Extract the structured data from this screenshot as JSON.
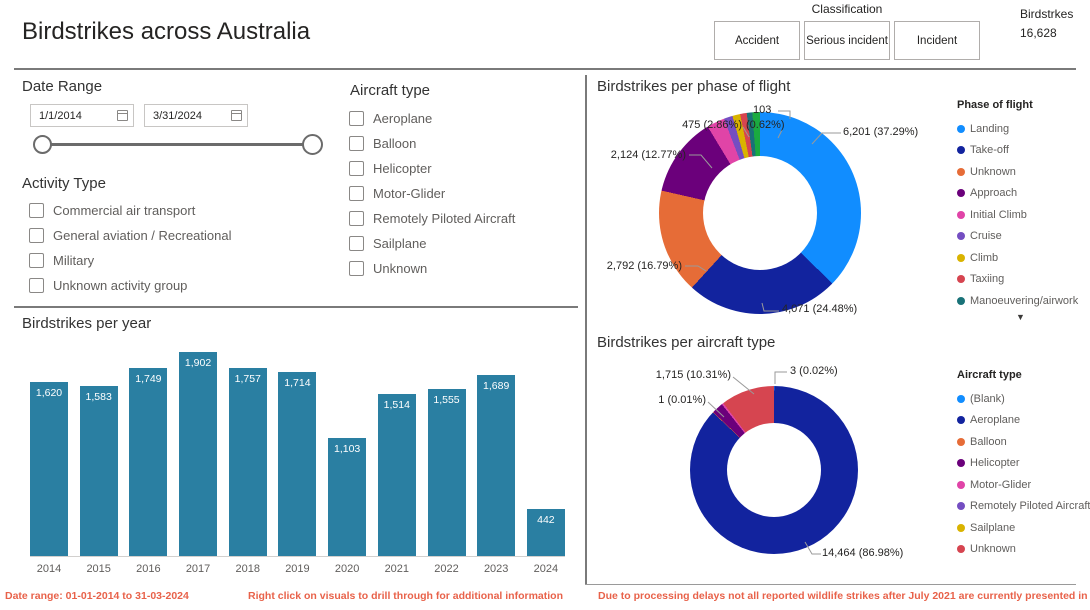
{
  "header": {
    "title": "Birdstrikes across Australia",
    "classification": {
      "label": "Classification",
      "buttons": [
        "Accident",
        "Serious incident",
        "Incident"
      ]
    },
    "kpi": {
      "label": "Birdstrkes",
      "value": "16,628"
    }
  },
  "filters": {
    "date_range": {
      "label": "Date Range",
      "start": "1/1/2014",
      "end": "3/31/2024"
    },
    "activity_type": {
      "label": "Activity Type",
      "options": [
        "Commercial air transport",
        "General aviation / Recreational",
        "Military",
        "Unknown activity group"
      ]
    },
    "aircraft_type": {
      "label": "Aircraft type",
      "options": [
        "Aeroplane",
        "Balloon",
        "Helicopter",
        "Motor-Glider",
        "Remotely Piloted Aircraft",
        "Sailplane",
        "Unknown"
      ]
    }
  },
  "footer": {
    "left": "Date range: 01-01-2014 to 31-03-2024",
    "middle": "Right click on visuals to drill through for additional information",
    "right": "Due to processing delays not all reported wildlife strikes after July 2021 are currently presented in this datas"
  },
  "chart_data": [
    {
      "id": "per_year",
      "type": "bar",
      "title": "Birdstrikes per year",
      "categories": [
        "2014",
        "2015",
        "2016",
        "2017",
        "2018",
        "2019",
        "2020",
        "2021",
        "2022",
        "2023",
        "2024"
      ],
      "values": [
        1620,
        1583,
        1749,
        1902,
        1757,
        1714,
        1103,
        1514,
        1555,
        1689,
        442
      ],
      "value_labels": [
        "1,620",
        "1,583",
        "1,749",
        "1,902",
        "1,757",
        "1,714",
        "1,103",
        "1,514",
        "1,555",
        "1,689",
        "442"
      ],
      "xlabel": "",
      "ylabel": "",
      "ylim": [
        0,
        1902
      ],
      "bar_color": "#2a7fa2",
      "grid": false,
      "labels_inside_bars": true
    },
    {
      "id": "per_phase",
      "type": "donut",
      "title": "Birdstrikes per phase of flight",
      "legend_title": "Phase of flight",
      "legend_position": "right",
      "legend_scroll_indicator": "▼",
      "segments": [
        {
          "label": "Landing",
          "value": 6201,
          "pct": 37.29,
          "color": "#118DFF"
        },
        {
          "label": "Take-off",
          "value": 4071,
          "pct": 24.48,
          "color": "#12239E"
        },
        {
          "label": "Unknown",
          "value": 2792,
          "pct": 16.79,
          "color": "#E66C37"
        },
        {
          "label": "Approach",
          "value": 2124,
          "pct": 12.77,
          "color": "#6B007B"
        },
        {
          "label": "Initial Climb",
          "value": 475,
          "pct": 2.86,
          "color": "#E044A7"
        },
        {
          "label": "Cruise",
          "value": 103,
          "pct": 0.62,
          "color": "#744EC2",
          "render_pct": 1.4
        },
        {
          "label": "Climb",
          "color": "#D9B300",
          "estimated": true,
          "render_pct": 1.25
        },
        {
          "label": "Taxiing",
          "color": "#D64550",
          "estimated": true,
          "render_pct": 1.05
        },
        {
          "label": "Manoeuvering/airwork",
          "color": "#197278",
          "estimated": true,
          "render_pct": 0.9
        },
        {
          "label": "",
          "color": "#1AAB40",
          "estimated": true,
          "render_pct": 1.2,
          "in_legend": false
        }
      ],
      "callouts": [
        "6,201 (37.29%)",
        "4,071 (24.48%)",
        "2,792 (16.79%)",
        "2,124 (12.77%)",
        "475 (2.86%)",
        "(0.62%)",
        "103"
      ]
    },
    {
      "id": "per_aircraft",
      "type": "donut",
      "title": "Birdstrikes per aircraft type",
      "legend_title": "Aircraft type",
      "legend_position": "right",
      "segments": [
        {
          "label": "(Blank)",
          "value": 3,
          "pct": 0.02,
          "color": "#118DFF",
          "render_pct": 0.05
        },
        {
          "label": "Aeroplane",
          "value": 14464,
          "pct": 86.98,
          "color": "#12239E"
        },
        {
          "label": "Balloon",
          "color": "#E66C37",
          "estimated": true,
          "render_pct": 0.1
        },
        {
          "label": "Helicopter",
          "color": "#6B007B",
          "estimated": true,
          "render_pct": 2.2
        },
        {
          "label": "Motor-Glider",
          "value": 1,
          "pct": 0.01,
          "color": "#E044A7",
          "render_pct": 0.35
        },
        {
          "label": "Remotely Piloted Aircraft",
          "color": "#744EC2",
          "estimated": true,
          "render_pct": 0
        },
        {
          "label": "Sailplane",
          "color": "#D9B300",
          "estimated": true,
          "render_pct": 0
        },
        {
          "label": "Unknown",
          "value": 1715,
          "pct": 10.31,
          "color": "#D64550"
        }
      ],
      "callouts": [
        "3 (0.02%)",
        "1,715 (10.31%)",
        "1 (0.01%)",
        "14,464 (86.98%)"
      ]
    }
  ]
}
